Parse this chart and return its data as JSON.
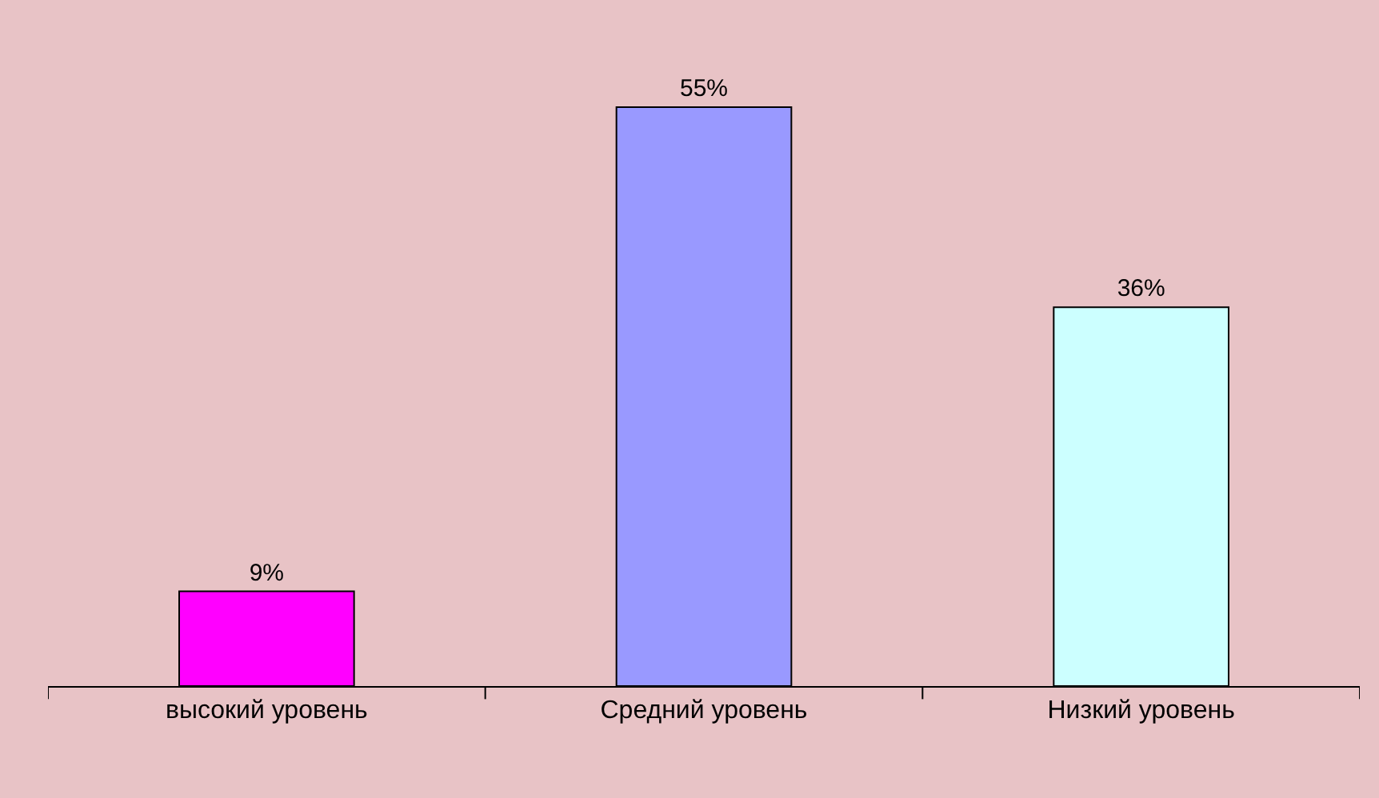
{
  "chart_data": {
    "type": "bar",
    "categories": [
      "высокий уровень",
      "Средний уровень",
      "Низкий уровень"
    ],
    "values": [
      9,
      55,
      36
    ],
    "colors": [
      "#ff00ff",
      "#9999ff",
      "#ccffff"
    ],
    "value_labels": [
      "9%",
      "55%",
      "36%"
    ]
  }
}
